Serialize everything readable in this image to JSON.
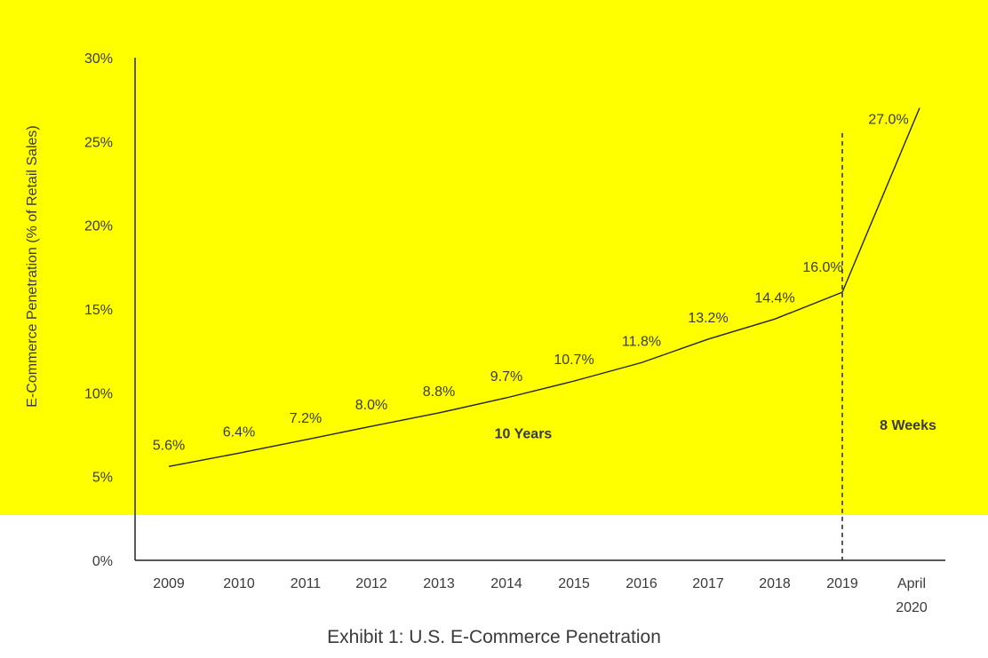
{
  "caption": "Exhibit 1: U.S. E-Commerce Penetration",
  "colors": {
    "background": "#ffff00",
    "line": "#222222",
    "text": "#3a3a3a"
  },
  "chart_data": {
    "type": "line",
    "title": "",
    "xlabel": "",
    "ylabel": "E-Commerce Penetration (% of Retail Sales)",
    "ylim": [
      0,
      30
    ],
    "yticks": [
      "0%",
      "5%",
      "10%",
      "15%",
      "20%",
      "25%",
      "30%"
    ],
    "grid": false,
    "categories": [
      "2009",
      "2010",
      "2011",
      "2012",
      "2013",
      "2014",
      "2015",
      "2016",
      "2017",
      "2018",
      "2019",
      "April 2020"
    ],
    "values": [
      5.6,
      6.4,
      7.2,
      8.0,
      8.8,
      9.7,
      10.7,
      11.8,
      13.2,
      14.4,
      16.0,
      27.0
    ],
    "data_labels": [
      "5.6%",
      "6.4%",
      "7.2%",
      "8.0%",
      "8.8%",
      "9.7%",
      "10.7%",
      "11.8%",
      "13.2%",
      "14.4%",
      "16.0%",
      "27.0%"
    ],
    "annotations": [
      {
        "text": "10 Years",
        "x": "2014",
        "y": 7.5
      },
      {
        "text": "8 Weeks",
        "x": "April 2020",
        "y": 8
      }
    ],
    "reference_line": {
      "x": "2019",
      "style": "dashed",
      "ymax": 25.5
    }
  }
}
